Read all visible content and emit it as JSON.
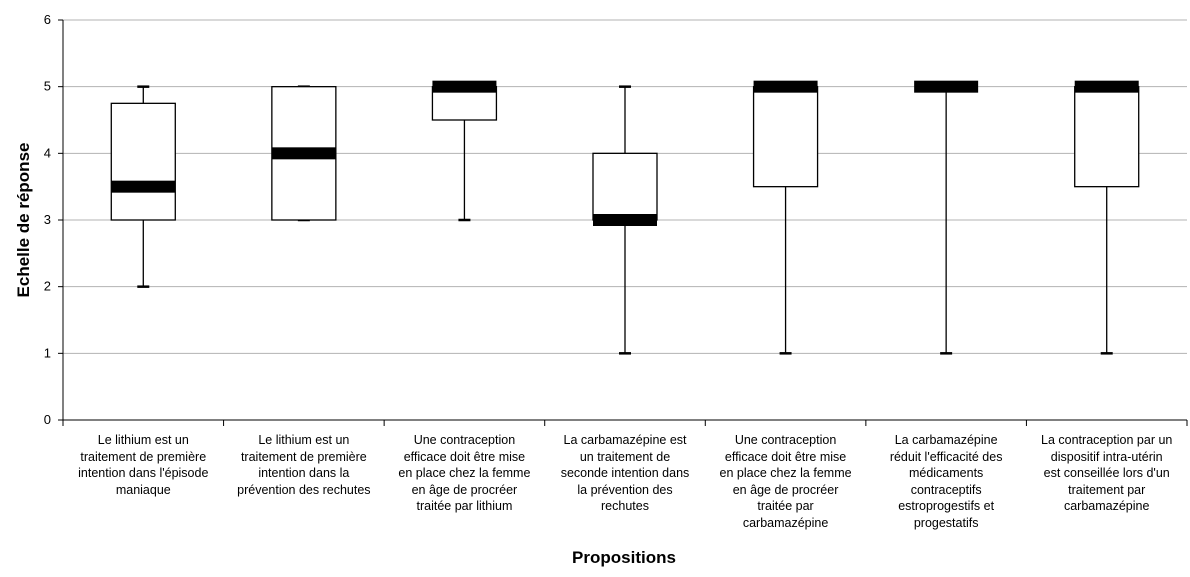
{
  "chart_data": {
    "type": "boxplot",
    "xlabel": "Propositions",
    "ylabel": "Echelle de réponse",
    "ylim": [
      0,
      6
    ],
    "yticks": [
      "0",
      "1",
      "2",
      "3",
      "4",
      "5",
      "6"
    ],
    "grid": true,
    "categories": [
      "Le lithium est un traitement de première intention dans l'épisode maniaque",
      "Le lithium est un traitement de première intention dans la prévention des rechutes",
      "Une contraception efficace doit être mise en place chez la femme en âge de procréer traitée par lithium",
      "La carbamazépine est un traitement de seconde intention dans la prévention des rechutes",
      "Une contraception efficace doit être mise en place chez la femme en âge de procréer traitée par carbamazépine",
      "La carbamazépine réduit l'efficacité des médicaments contraceptifs estroprogestifs et progestatifs",
      "La contraception par un dispositif intra-utérin est conseillée lors d'un traitement par carbamazépine"
    ],
    "category_lines": [
      [
        "Le lithium est un",
        "traitement de première",
        "intention dans l'épisode",
        "maniaque"
      ],
      [
        "Le lithium est un",
        "traitement de première",
        "intention dans la",
        "prévention des rechutes"
      ],
      [
        "Une contraception",
        "efficace doit être mise",
        "en place chez la femme",
        "en âge de procréer",
        "traitée par lithium"
      ],
      [
        "La carbamazépine est",
        "un traitement de",
        "seconde intention dans",
        "la prévention des",
        "rechutes"
      ],
      [
        "Une contraception",
        "efficace doit être mise",
        "en place chez la femme",
        "en âge de procréer",
        "traitée par",
        "carbamazépine"
      ],
      [
        "La carbamazépine",
        "réduit l'efficacité des",
        "médicaments",
        "contraceptifs",
        "estroprogestifs et",
        "progestatifs"
      ],
      [
        "La contraception par un",
        "dispositif intra-utérin",
        "est conseillée lors d'un",
        "traitement par",
        "carbamazépine"
      ]
    ],
    "boxes": [
      {
        "min": 2,
        "q1": 3,
        "median": 3.5,
        "q3": 4.75,
        "max": 5
      },
      {
        "min": 3,
        "q1": 3,
        "median": 4,
        "q3": 5,
        "max": 5
      },
      {
        "min": 3,
        "q1": 4.5,
        "median": 5,
        "q3": 5,
        "max": 5
      },
      {
        "min": 1,
        "q1": 3,
        "median": 3,
        "q3": 4,
        "max": 5
      },
      {
        "min": 1,
        "q1": 3.5,
        "median": 5,
        "q3": 5,
        "max": 5
      },
      {
        "min": 1,
        "q1": 5,
        "median": 5,
        "q3": 5,
        "max": 5
      },
      {
        "min": 1,
        "q1": 3.5,
        "median": 5,
        "q3": 5,
        "max": 5
      }
    ],
    "colors": {
      "box_fill": "#ffffff",
      "box_stroke": "#000000",
      "median": "#000000",
      "grid": "#b3b3b3"
    }
  }
}
